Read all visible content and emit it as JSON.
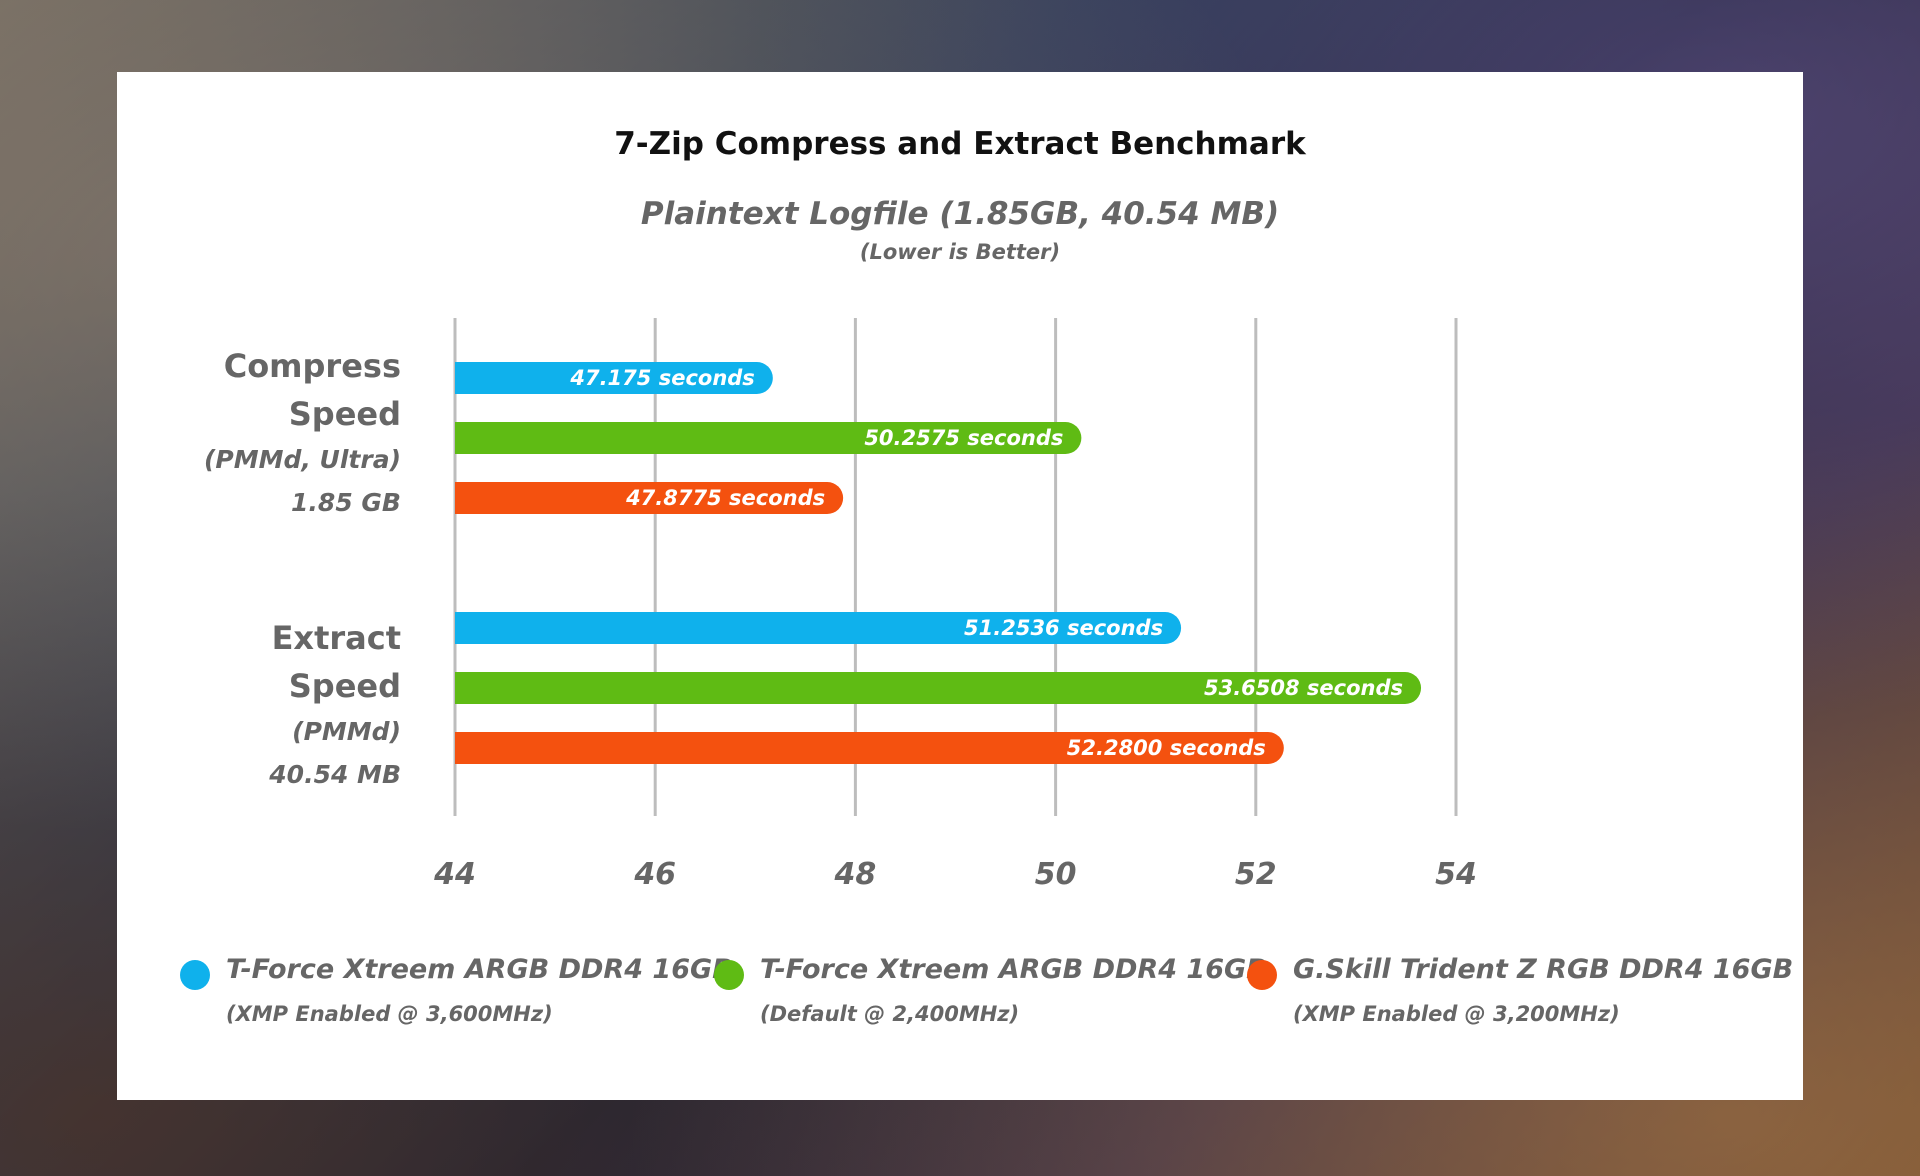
{
  "chart_data": {
    "type": "bar",
    "orientation": "horizontal",
    "title": "7-Zip Compress and Extract Benchmark",
    "subtitle": "Plaintext Logfile (1.85GB, 40.54 MB)",
    "note": "(Lower is Better)",
    "categories": [
      {
        "name": "Compress Speed",
        "line1": "Compress",
        "line2": "Speed",
        "line3": "(PMMd, Ultra)",
        "line4": "1.85 GB"
      },
      {
        "name": "Extract Speed",
        "line1": "Extract",
        "line2": "Speed",
        "line3": "(PMMd)",
        "line4": "40.54 MB"
      }
    ],
    "series": [
      {
        "name": "T-Force Xtreem ARGB DDR4 16GB",
        "detail": "(XMP Enabled @ 3,600MHz)",
        "color": "#0fb1ec",
        "values": [
          47.175,
          51.2536
        ],
        "labels": [
          "47.175 seconds",
          "51.2536 seconds"
        ]
      },
      {
        "name": "T-Force Xtreem ARGB DDR4 16GB",
        "detail": "(Default @ 2,400MHz)",
        "color": "#5fbb14",
        "values": [
          50.2575,
          53.6508
        ],
        "labels": [
          "50.2575 seconds",
          "53.6508 seconds"
        ]
      },
      {
        "name": "G.Skill Trident Z RGB DDR4 16GB",
        "detail": "(XMP Enabled @ 3,200MHz)",
        "color": "#f4510f",
        "values": [
          47.8775,
          52.28
        ],
        "labels": [
          "47.8775 seconds",
          "52.2800 seconds"
        ]
      }
    ],
    "xlim": [
      44,
      54
    ],
    "xticks": [
      44,
      46,
      48,
      50,
      52,
      54
    ],
    "xtick_labels": [
      "44",
      "46",
      "48",
      "50",
      "52",
      "54"
    ],
    "grid": true,
    "legend_position": "bottom"
  }
}
